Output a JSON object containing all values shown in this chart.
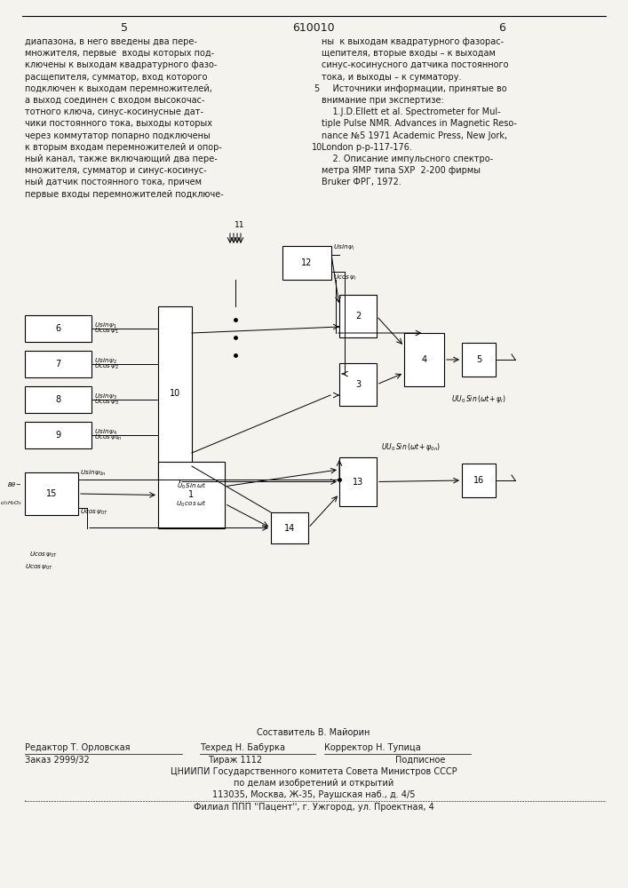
{
  "patent_number": "610010",
  "page_left": "5",
  "page_right": "6",
  "bg_color": "#f5f3ee",
  "text_color": "#1a1a1a",
  "left_col_lines": [
    "диапазона, в него введены два пере-",
    "множителя, первые  входы которых под-",
    "ключены к выходам квадратурного фазо-",
    "расщепителя, сумматор, вход которого",
    "подключен к выходам перемножителей,",
    "а выход соединен с входом высокочас-",
    "тотного ключа, синус-косинусные дат-",
    "чики постоянного тока, выходы которых",
    "через коммутатор попарно подключены",
    "к вторым входам перемножителей и опор-",
    "ный канал, также включающий два пере-",
    "множителя, сумматор и синус-косинус-",
    "ный датчик постоянного тока, причем",
    "первые входы перемножителей подключе-"
  ],
  "right_col_lines": [
    "ны  к выходам квадратурного фазорас-",
    "щепителя, вторые входы – к выходам",
    "синус-косинусного датчика постоянного",
    "тока, и выходы – к сумматору.",
    "    Источники информации, принятые во",
    "внимание при экспертизе:",
    "    1.J.D.Ellett et al. Spectrometer for Mul-",
    "tiple Pulse NMR. Advances in Magnetic Reso-",
    "nance №5 1971 Academic Press, New Jork,",
    "London p-p-117-176.",
    "    2. Описание импульсного спектро-",
    "метра ЯМР типа SXP  2-200 фирмы",
    "Bruker ФРГ, 1972."
  ],
  "footer_composer": "Составитель В. Майорин",
  "footer_editor": "Редактор Т. Орловская",
  "footer_techred": "Техред Н. Бабурка",
  "footer_corrector": "Корректор Н. Тупица",
  "footer_order": "Заказ 2999/32",
  "footer_tirazh": "Тираж 1112",
  "footer_podpisnoe": "Подписное",
  "footer_org": "ЦНИИПИ Государственного комитета Совета Министров СССР",
  "footer_org2": "по делам изобретений и открытий",
  "footer_address": "113035, Москва, Ж-35, Раушская наб., д. 4/5",
  "footer_filial": "Филиал ППП ''Пацент'', г. Ужгород, ул. Проектная, 4"
}
